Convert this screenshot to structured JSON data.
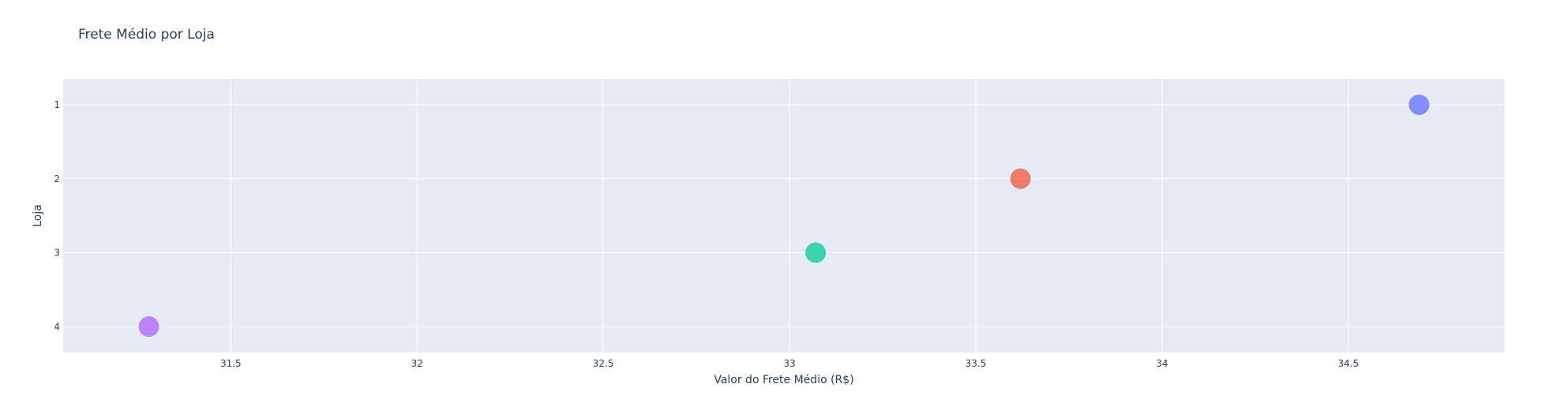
{
  "chart_data": {
    "type": "scatter",
    "title": "Frete Médio por Loja",
    "xlabel": "Valor do Frete Médio (R$)",
    "ylabel": "Loja",
    "xlim": [
      31.05,
      34.92
    ],
    "ylim": [
      0.65,
      4.35
    ],
    "y_reversed": true,
    "x_ticks": [
      "31.5",
      "32",
      "32.5",
      "33",
      "33.5",
      "34",
      "34.5"
    ],
    "y_ticks": [
      "1",
      "2",
      "3",
      "4"
    ],
    "grid": true,
    "legend": "none",
    "points": [
      {
        "x": 34.69,
        "y": 1,
        "color": "#636efa"
      },
      {
        "x": 33.62,
        "y": 2,
        "color": "#ef553b"
      },
      {
        "x": 33.07,
        "y": 3,
        "color": "#00cc96"
      },
      {
        "x": 31.28,
        "y": 4,
        "color": "#ab63fa"
      }
    ],
    "plot_background": "#e5ecf6",
    "grid_color": "#ffffff"
  }
}
